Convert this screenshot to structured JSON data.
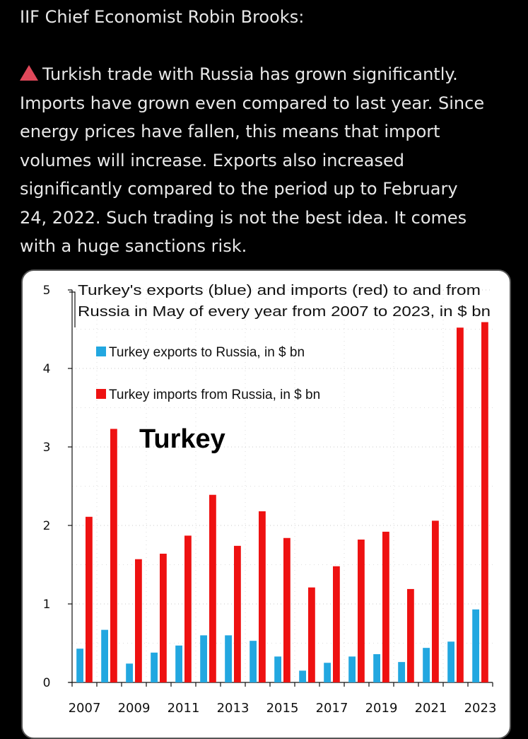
{
  "post": {
    "author": "IIF Chief Economist Robin Brooks:",
    "warning_icon": "red-triangle-icon",
    "lines": [
      "Turkish trade with Russia has grown significantly.",
      "Imports have grown even compared to last year. Since",
      "energy prices have fallen, this means that import",
      "volumes will increase. Exports also increased",
      "significantly compared to the period up to February",
      "24, 2022. Such trading is not the best idea. It comes",
      "with a huge sanctions risk."
    ]
  },
  "chart_data": {
    "type": "bar",
    "title_lines": [
      "Turkey's exports (blue) and imports (red) to and from",
      "Russia in May of every year from 2007 to 2023,  in $ bn"
    ],
    "annotation": "Turkey",
    "categories": [
      "2007",
      "2008",
      "2009",
      "2010",
      "2011",
      "2012",
      "2013",
      "2014",
      "2015",
      "2016",
      "2017",
      "2018",
      "2019",
      "2020",
      "2021",
      "2022",
      "2023"
    ],
    "xtick_labels": [
      "2007",
      "2009",
      "2011",
      "2013",
      "2015",
      "2017",
      "2019",
      "2021",
      "2023"
    ],
    "series": [
      {
        "name": "Turkey exports to Russia, in $ bn",
        "color": "#22a7e0",
        "values": [
          0.43,
          0.67,
          0.24,
          0.38,
          0.47,
          0.6,
          0.6,
          0.53,
          0.33,
          0.15,
          0.25,
          0.33,
          0.36,
          0.26,
          0.44,
          0.52,
          0.93
        ]
      },
      {
        "name": "Turkey imports from Russia, in $ bn",
        "color": "#ee1111",
        "values": [
          2.11,
          3.23,
          1.57,
          1.64,
          1.87,
          2.39,
          1.74,
          2.18,
          1.84,
          1.21,
          1.48,
          1.82,
          1.92,
          1.19,
          2.06,
          4.52,
          4.59
        ]
      }
    ],
    "yticks": [
      "0",
      "1",
      "2",
      "3",
      "4",
      "5"
    ],
    "ylim": [
      0,
      5
    ],
    "grid": "dotted horizontal and vertical",
    "legend_position": "top-left"
  }
}
